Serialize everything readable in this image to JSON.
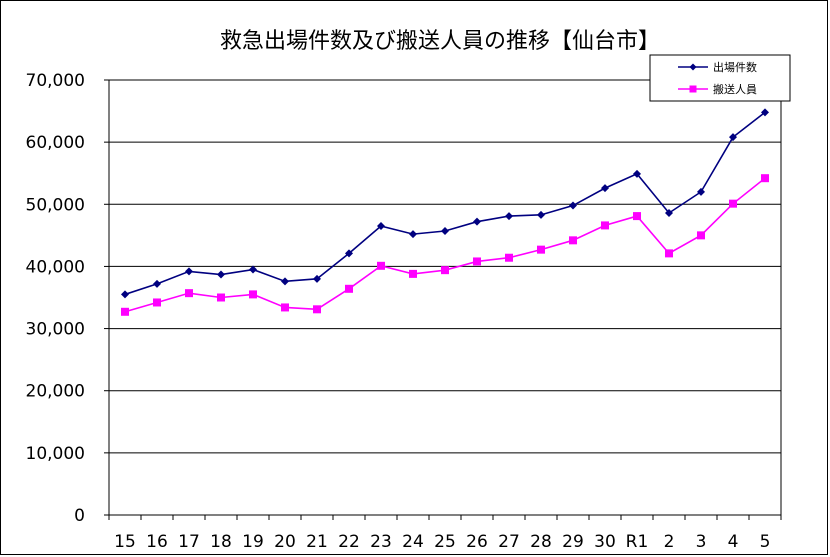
{
  "colors": {
    "series_1": "#000080",
    "series_2": "#ff00ff",
    "gridline": "#000000",
    "axis": "#000000"
  },
  "chart_data": {
    "type": "line",
    "title": "救急出場件数及び搬送人員の推移【仙台市】",
    "xlabel": "",
    "ylabel": "",
    "categories": [
      "15",
      "16",
      "17",
      "18",
      "19",
      "20",
      "21",
      "22",
      "23",
      "24",
      "25",
      "26",
      "27",
      "28",
      "29",
      "30",
      "R1",
      "2",
      "3",
      "4",
      "5"
    ],
    "ylim": [
      0,
      70000
    ],
    "yticks": [
      0,
      10000,
      20000,
      30000,
      40000,
      50000,
      60000,
      70000
    ],
    "ytick_labels": [
      "0",
      "10,000",
      "20,000",
      "30,000",
      "40,000",
      "50,000",
      "60,000",
      "70,000"
    ],
    "grid": true,
    "legend_position": "top-right",
    "series": [
      {
        "name": "出場件数",
        "marker": "diamond",
        "values": [
          35500,
          37200,
          39200,
          38700,
          39500,
          37600,
          38000,
          42100,
          46500,
          45200,
          45700,
          47200,
          48100,
          48300,
          49800,
          52600,
          54900,
          48600,
          52000,
          60800,
          64800
        ]
      },
      {
        "name": "搬送人員",
        "marker": "square",
        "values": [
          32700,
          34200,
          35700,
          35000,
          35500,
          33400,
          33100,
          36400,
          40100,
          38800,
          39400,
          40800,
          41400,
          42700,
          44200,
          46600,
          48100,
          42100,
          45000,
          50100,
          54200
        ]
      }
    ]
  }
}
